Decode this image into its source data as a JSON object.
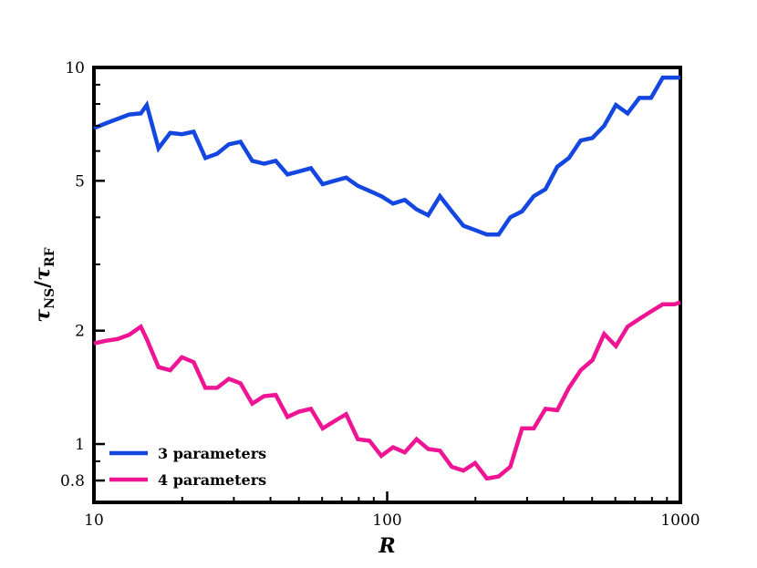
{
  "chart_data": {
    "type": "line",
    "xlabel": "R",
    "ylabel_main": "τ",
    "ylabel_sub1": "NS",
    "ylabel_sep": "/",
    "ylabel_sub2": "RF",
    "xscale": "log",
    "yscale": "log",
    "xlim": [
      10,
      1000
    ],
    "ylim": [
      0.7,
      10
    ],
    "xticks": [
      {
        "value": 10,
        "label": "10"
      },
      {
        "value": 100,
        "label": "100"
      },
      {
        "value": 1000,
        "label": "1000"
      }
    ],
    "yticks": [
      {
        "value": 0.8,
        "label": "0.8"
      },
      {
        "value": 1,
        "label": "1"
      },
      {
        "value": 2,
        "label": "2"
      },
      {
        "value": 5,
        "label": "5"
      },
      {
        "value": 10,
        "label": "10"
      }
    ],
    "legend_position": "bottom-left",
    "grid": false,
    "series": [
      {
        "name": "3 parameters",
        "color": "#1446e0",
        "x": [
          10,
          10.96,
          12.02,
          13.18,
          14.45,
          15.14,
          16.6,
          18.2,
          19.95,
          21.88,
          23.99,
          26.3,
          28.84,
          31.62,
          34.67,
          38.02,
          41.69,
          45.71,
          50.12,
          54.95,
          60.26,
          66.07,
          72.44,
          79.43,
          87.1,
          95.5,
          104.7,
          114.8,
          125.9,
          138.0,
          151.4,
          166.0,
          182.0,
          199.5,
          218.8,
          239.9,
          263.0,
          288.4,
          316.2,
          346.7,
          380.2,
          416.9,
          457.1,
          501.2,
          549.5,
          602.6,
          660.7,
          724.4,
          794.3,
          870.96,
          954.99,
          1000
        ],
        "y": [
          6.9,
          7.1,
          7.3,
          7.5,
          7.55,
          7.95,
          6.1,
          6.7,
          6.65,
          6.75,
          5.75,
          5.9,
          6.25,
          6.35,
          5.65,
          5.55,
          5.65,
          5.2,
          5.3,
          5.4,
          4.9,
          5.0,
          5.1,
          4.85,
          4.7,
          4.55,
          4.35,
          4.45,
          4.2,
          4.05,
          4.55,
          4.15,
          3.8,
          3.7,
          3.6,
          3.6,
          4.0,
          4.15,
          4.55,
          4.75,
          5.45,
          5.75,
          6.4,
          6.5,
          7.0,
          7.95,
          7.55,
          8.3,
          8.3,
          9.4,
          9.4,
          9.4
        ]
      },
      {
        "name": "4 parameters",
        "color": "#ee1493",
        "x": [
          10,
          10.96,
          12.02,
          13.18,
          14.45,
          15.14,
          16.6,
          18.2,
          19.95,
          21.88,
          23.99,
          26.3,
          28.84,
          31.62,
          34.67,
          38.02,
          41.69,
          45.71,
          50.12,
          54.95,
          60.26,
          66.07,
          72.44,
          79.43,
          87.1,
          95.5,
          104.7,
          114.8,
          125.9,
          138.0,
          151.4,
          166.0,
          182.0,
          199.5,
          218.8,
          239.9,
          263.0,
          288.4,
          316.2,
          346.7,
          380.2,
          416.9,
          457.1,
          501.2,
          549.5,
          602.6,
          660.7,
          724.4,
          794.3,
          870.96,
          954.99,
          1000
        ],
        "y": [
          1.85,
          1.88,
          1.9,
          1.95,
          2.05,
          1.9,
          1.6,
          1.57,
          1.7,
          1.65,
          1.41,
          1.41,
          1.49,
          1.45,
          1.28,
          1.34,
          1.35,
          1.18,
          1.22,
          1.24,
          1.1,
          1.15,
          1.2,
          1.03,
          1.02,
          0.93,
          0.98,
          0.95,
          1.03,
          0.97,
          0.96,
          0.87,
          0.85,
          0.89,
          0.81,
          0.82,
          0.87,
          1.1,
          1.1,
          1.24,
          1.23,
          1.41,
          1.57,
          1.67,
          1.96,
          1.82,
          2.05,
          2.15,
          2.25,
          2.35,
          2.35,
          2.38
        ]
      }
    ]
  }
}
